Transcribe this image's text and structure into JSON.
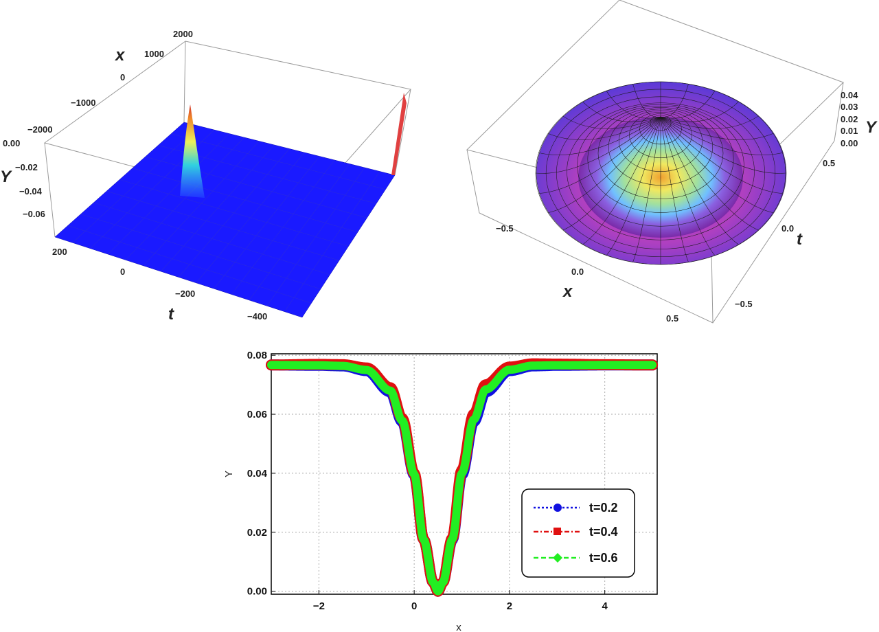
{
  "chart_data": [
    {
      "type": "surface3d",
      "axes": {
        "x": {
          "label": "x",
          "ticks": [
            "2000",
            "1000",
            "0",
            "−1000",
            "−2000"
          ]
        },
        "t": {
          "label": "t",
          "ticks": [
            "200",
            "0",
            "−200",
            "−400"
          ]
        },
        "y": {
          "label": "Y",
          "ticks": [
            "0.00",
            "−0.02",
            "−0.04",
            "−0.06"
          ]
        }
      },
      "surface_color": "#1a1aff",
      "description_values": {
        "baseline_Y": -0.077,
        "peak_Y": 0.0
      }
    },
    {
      "type": "surface3d",
      "axes": {
        "x": {
          "label": "x",
          "ticks": [
            "−0.5",
            "0.0",
            "0.5"
          ]
        },
        "t": {
          "label": "t",
          "ticks": [
            "0.5",
            "0.0",
            "−0.5"
          ]
        },
        "y": {
          "label": "Y",
          "ticks": [
            "0.04",
            "0.03",
            "0.02",
            "0.01",
            "0.00"
          ]
        }
      },
      "peak_Y": 0.04
    },
    {
      "type": "line",
      "xlabel": "x",
      "ylabel": "Y",
      "xlim": [
        -3,
        5.1
      ],
      "ylim": [
        -0.001,
        0.0805
      ],
      "xticks": [
        -2,
        0,
        2,
        4
      ],
      "xtick_labels": [
        "−2",
        "0",
        "2",
        "4"
      ],
      "yticks": [
        0.0,
        0.02,
        0.04,
        0.06,
        0.08
      ],
      "ytick_labels": [
        "0.00",
        "0.02",
        "0.04",
        "0.06",
        "0.08"
      ],
      "grid": true,
      "legend_position": "bottom-right",
      "series": [
        {
          "name": "t=0.2",
          "color": "#1010e0",
          "marker": "circle",
          "dash": "dotted",
          "x": [
            -3,
            -2,
            -1.5,
            -1,
            -0.5,
            -0.25,
            0,
            0.2,
            0.4,
            0.5,
            0.6,
            0.8,
            1,
            1.25,
            1.5,
            2,
            2.5,
            3,
            4,
            5
          ],
          "values": [
            0.0767,
            0.0766,
            0.0764,
            0.0748,
            0.0676,
            0.0575,
            0.0395,
            0.0175,
            0.003,
            0.0,
            0.003,
            0.0175,
            0.0395,
            0.0575,
            0.0676,
            0.0748,
            0.0764,
            0.0766,
            0.0767,
            0.0767
          ]
        },
        {
          "name": "t=0.4",
          "color": "#e01010",
          "marker": "square",
          "dash": "dashdot",
          "x": [
            -3,
            -2,
            -1.5,
            -1,
            -0.5,
            -0.25,
            0,
            0.2,
            0.4,
            0.5,
            0.6,
            0.8,
            1,
            1.25,
            1.5,
            2,
            2.5,
            3,
            4,
            5
          ],
          "values": [
            0.0767,
            0.0769,
            0.0768,
            0.0757,
            0.069,
            0.0585,
            0.04,
            0.0175,
            0.003,
            0.0,
            0.003,
            0.018,
            0.041,
            0.06,
            0.07,
            0.076,
            0.0771,
            0.077,
            0.0768,
            0.0767
          ]
        },
        {
          "name": "t=0.6",
          "color": "#22ee22",
          "marker": "diamond",
          "dash": "dashed",
          "x": [
            -3,
            -2,
            -1.5,
            -1,
            -0.5,
            -0.25,
            0,
            0.2,
            0.4,
            0.5,
            0.6,
            0.8,
            1,
            1.25,
            1.5,
            2,
            2.5,
            3,
            4,
            5
          ],
          "values": [
            0.0767,
            0.0766,
            0.0764,
            0.075,
            0.068,
            0.0578,
            0.0397,
            0.0175,
            0.003,
            0.0,
            0.003,
            0.0177,
            0.04,
            0.0582,
            0.0684,
            0.0751,
            0.0765,
            0.0766,
            0.0767,
            0.0767
          ]
        }
      ]
    }
  ]
}
